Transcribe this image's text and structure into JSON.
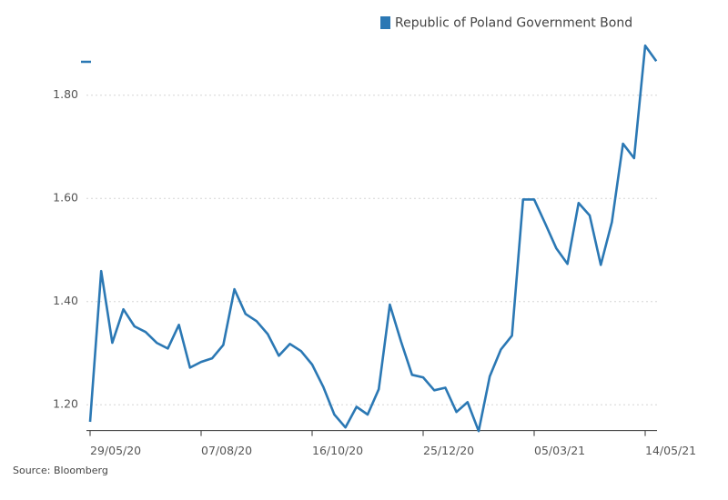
{
  "chart_data": {
    "type": "line",
    "source": "Source: Bloomberg",
    "categories": [
      "29/05/20",
      null,
      null,
      null,
      null,
      null,
      null,
      null,
      null,
      null,
      "07/08/20",
      null,
      null,
      null,
      null,
      null,
      null,
      null,
      null,
      null,
      "16/10/20",
      null,
      null,
      null,
      null,
      null,
      null,
      null,
      null,
      null,
      "25/12/20",
      null,
      null,
      null,
      null,
      null,
      null,
      null,
      null,
      null,
      "05/03/21",
      null,
      null,
      null,
      null,
      null,
      null,
      null,
      null,
      null,
      "14/05/21",
      null
    ],
    "series": [
      {
        "name": "Republic of Poland Government Bond",
        "color": "#2b78b4",
        "values": [
          1.167,
          1.459,
          1.32,
          1.385,
          1.352,
          1.341,
          1.32,
          1.309,
          1.355,
          1.272,
          1.283,
          1.29,
          1.316,
          1.424,
          1.376,
          1.362,
          1.337,
          1.295,
          1.318,
          1.304,
          1.278,
          1.235,
          1.181,
          1.156,
          1.196,
          1.181,
          1.23,
          1.394,
          1.323,
          1.258,
          1.253,
          1.228,
          1.233,
          1.186,
          1.205,
          1.149,
          1.255,
          1.307,
          1.334,
          1.598,
          1.598,
          1.551,
          1.503,
          1.473,
          1.591,
          1.567,
          1.471,
          1.554,
          1.706,
          1.678,
          1.896,
          1.866
        ]
      }
    ],
    "ylim": [
      1.15,
      1.92
    ],
    "yticks": [
      {
        "value": 1.2,
        "label": "1.20"
      },
      {
        "value": 1.4,
        "label": "1.40"
      },
      {
        "value": 1.6,
        "label": "1.60"
      },
      {
        "value": 1.8,
        "label": "1.80"
      }
    ],
    "grid": true
  }
}
